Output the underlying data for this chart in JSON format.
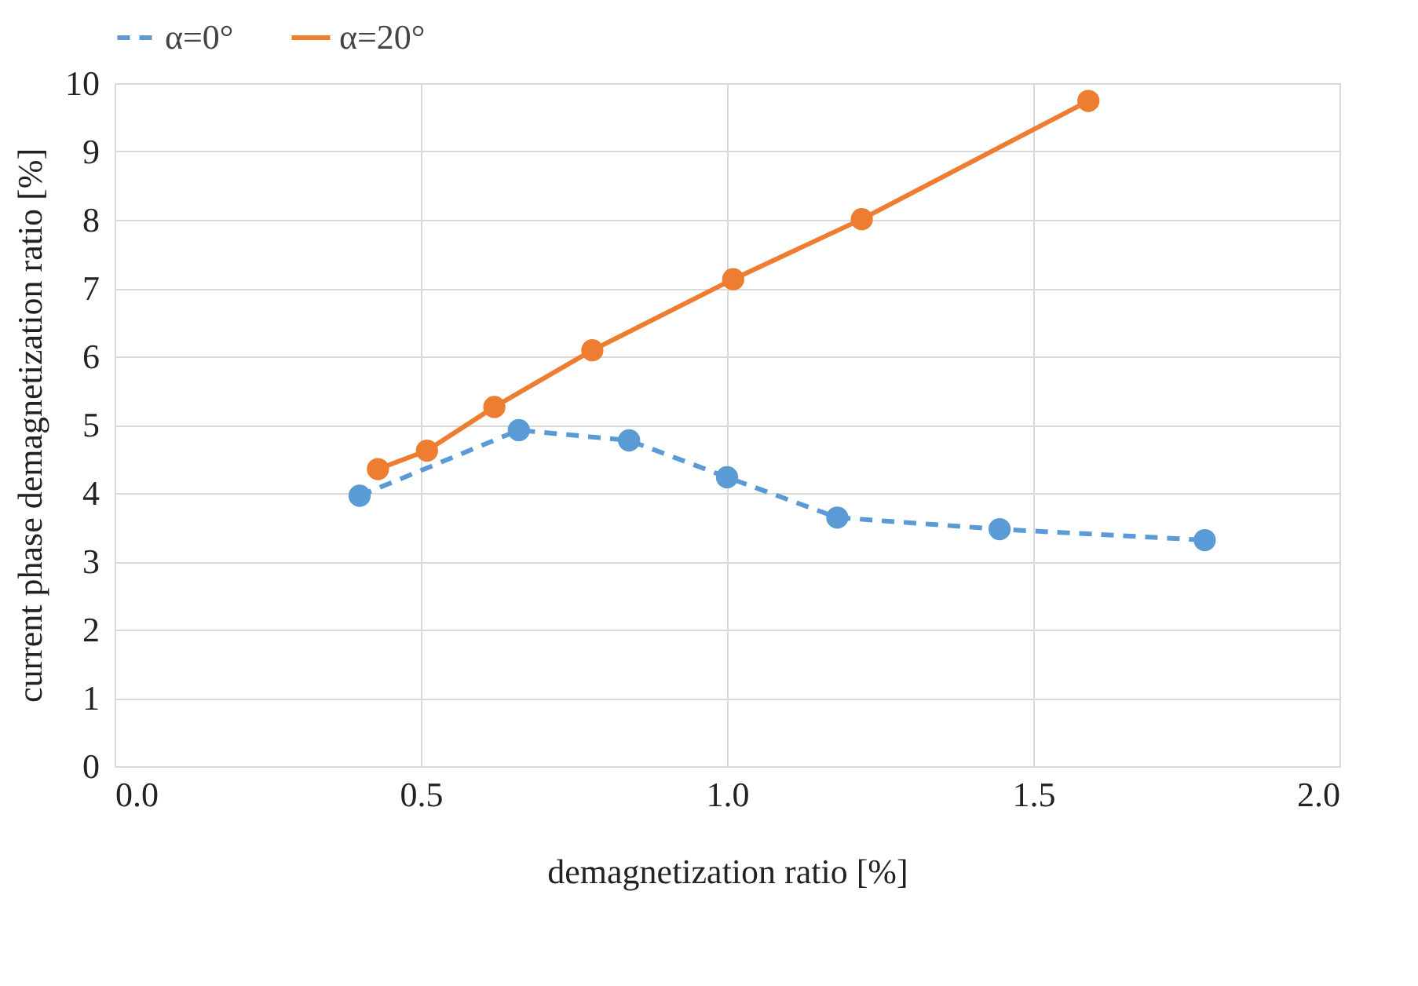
{
  "chart_data": {
    "type": "line",
    "xlabel": "demagnetization ratio [%]",
    "ylabel": "current phase demagnetization ratio [%]",
    "xlim": [
      0,
      2
    ],
    "xticks": [
      {
        "value": 0,
        "label": "0.0"
      },
      {
        "value": 0.5,
        "label": "0.5"
      },
      {
        "value": 1,
        "label": "1.0"
      },
      {
        "value": 1.5,
        "label": "1.5"
      },
      {
        "value": 2,
        "label": "2.0"
      }
    ],
    "ylim": [
      0,
      10
    ],
    "yticks": [
      0,
      1,
      2,
      3,
      4,
      5,
      6,
      7,
      8,
      9,
      10
    ],
    "grid": true,
    "legend": "top",
    "marker": "circle",
    "series": [
      {
        "name": "α=0°",
        "color": "#5b9bd5",
        "line_style": "dashed",
        "x": [
          0.4,
          0.66,
          0.84,
          1.0,
          1.18,
          1.445,
          1.78
        ],
        "values": [
          3.96,
          4.92,
          4.77,
          4.23,
          3.64,
          3.47,
          3.31
        ]
      },
      {
        "name": "α=20°",
        "color": "#ed7d31",
        "line_style": "solid",
        "x": [
          0.43,
          0.51,
          0.62,
          0.78,
          1.01,
          1.22,
          1.59
        ],
        "values": [
          4.35,
          4.62,
          5.26,
          6.09,
          7.13,
          8.01,
          9.74
        ]
      }
    ]
  }
}
